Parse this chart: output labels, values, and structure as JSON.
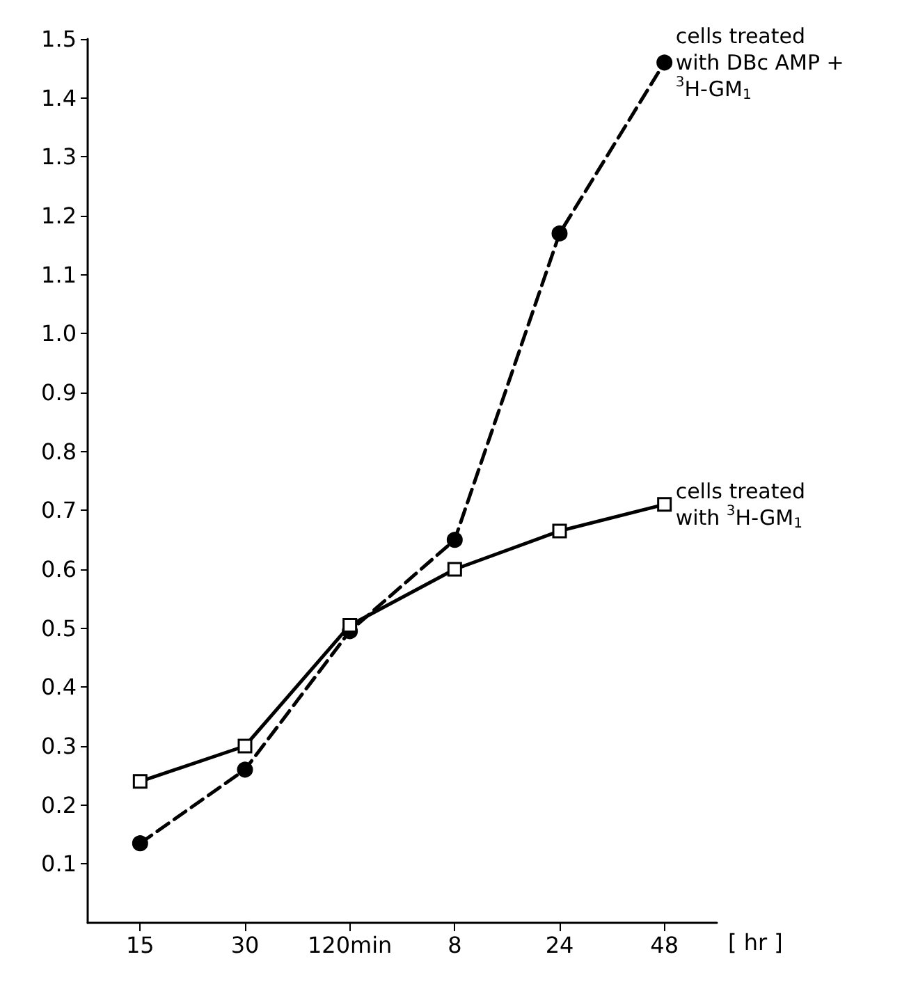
{
  "chart_data": {
    "type": "line",
    "xlabel": "[ hr ]",
    "categories": [
      "15",
      "30",
      "120min",
      "8",
      "24",
      "48"
    ],
    "ylim": [
      0,
      1.5
    ],
    "yticks": [
      0.1,
      0.2,
      0.3,
      0.4,
      0.5,
      0.6,
      0.7,
      0.8,
      0.9,
      {
        "value": 1.0,
        "label": "1.0"
      },
      1.1,
      1.2,
      1.3,
      1.4,
      1.5
    ],
    "grid": false,
    "legend": false,
    "series": [
      {
        "name": "cells treated with DBc AMP + $^{3}$H-GM$_{1}$",
        "color": "#000000",
        "marker": "circle",
        "line_style": "dashed",
        "values": [
          0.135,
          0.26,
          0.495,
          0.65,
          1.17,
          1.46
        ]
      },
      {
        "name": "cells treated with $^{3}$H-GM$_{1}$",
        "color": "#000000",
        "marker": "square",
        "line_style": "solid",
        "values": [
          0.24,
          0.3,
          0.505,
          0.6,
          0.665,
          0.71
        ]
      }
    ]
  }
}
